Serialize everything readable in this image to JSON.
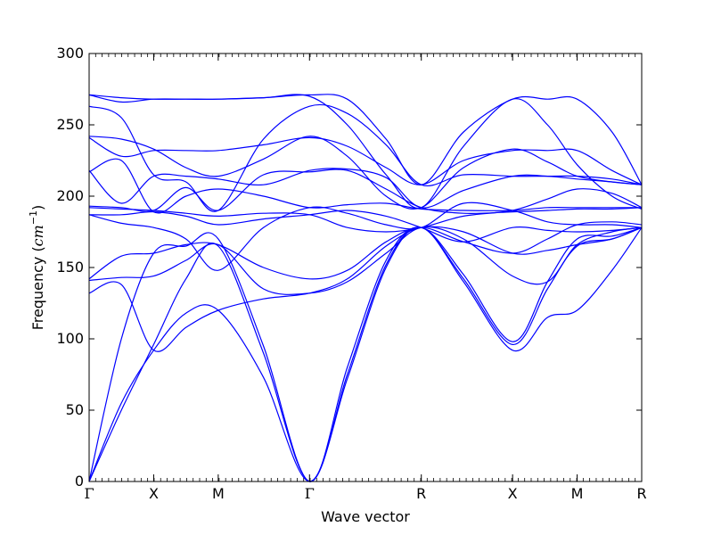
{
  "chart_data": {
    "type": "line",
    "xlabel": "Wave vector",
    "ylabel": {
      "prefix": "Frequency (",
      "unit": "cm",
      "exponent": "−1",
      "suffix": ")"
    },
    "ylim": [
      0,
      300
    ],
    "yticks": [
      0,
      50,
      100,
      150,
      200,
      250,
      300
    ],
    "path_points": [
      {
        "label": "Γ",
        "x": 0
      },
      {
        "label": "X",
        "x": 0.5
      },
      {
        "label": "M",
        "x": 1.0
      },
      {
        "label": "Γ",
        "x": 1.707
      },
      {
        "label": "R",
        "x": 2.573
      },
      {
        "label": "X",
        "x": 3.28
      },
      {
        "label": "M",
        "x": 3.78
      },
      {
        "label": "R",
        "x": 4.28
      }
    ],
    "grid": false,
    "line_color": "#0000ff",
    "series": [
      {
        "values": [
          [
            0,
            0
          ],
          [
            0.25,
            55
          ],
          [
            0.5,
            92
          ],
          [
            0.75,
            118
          ],
          [
            1.0,
            120
          ],
          [
            1.35,
            73
          ],
          [
            1.707,
            0
          ],
          [
            2.0,
            72
          ],
          [
            2.3,
            150
          ],
          [
            2.573,
            178
          ],
          [
            2.9,
            140
          ],
          [
            3.28,
            92
          ],
          [
            3.55,
            115
          ],
          [
            3.78,
            120
          ],
          [
            4.05,
            148
          ],
          [
            4.28,
            178
          ]
        ]
      },
      {
        "values": [
          [
            0,
            0
          ],
          [
            0.25,
            50
          ],
          [
            0.5,
            96
          ],
          [
            0.75,
            142
          ],
          [
            1.0,
            165
          ],
          [
            1.35,
            90
          ],
          [
            1.707,
            0
          ],
          [
            2.0,
            75
          ],
          [
            2.3,
            152
          ],
          [
            2.573,
            178
          ],
          [
            2.9,
            142
          ],
          [
            3.28,
            96
          ],
          [
            3.55,
            135
          ],
          [
            3.78,
            165
          ],
          [
            4.05,
            170
          ],
          [
            4.28,
            178
          ]
        ]
      },
      {
        "values": [
          [
            0,
            0
          ],
          [
            0.25,
            100
          ],
          [
            0.5,
            160
          ],
          [
            0.75,
            165
          ],
          [
            1.0,
            170
          ],
          [
            1.35,
            95
          ],
          [
            1.707,
            0
          ],
          [
            2.0,
            80
          ],
          [
            2.3,
            155
          ],
          [
            2.573,
            178
          ],
          [
            2.9,
            145
          ],
          [
            3.28,
            98
          ],
          [
            3.55,
            140
          ],
          [
            3.78,
            170
          ],
          [
            4.05,
            172
          ],
          [
            4.28,
            178
          ]
        ]
      },
      {
        "values": [
          [
            0,
            132
          ],
          [
            0.25,
            138
          ],
          [
            0.5,
            92
          ],
          [
            0.75,
            108
          ],
          [
            1.0,
            120
          ],
          [
            1.35,
            128
          ],
          [
            1.707,
            132
          ],
          [
            2.0,
            142
          ],
          [
            2.3,
            165
          ],
          [
            2.573,
            178
          ],
          [
            2.9,
            175
          ],
          [
            3.28,
            160
          ],
          [
            3.55,
            162
          ],
          [
            3.78,
            166
          ],
          [
            4.05,
            170
          ],
          [
            4.28,
            178
          ]
        ]
      },
      {
        "values": [
          [
            0,
            141
          ],
          [
            0.25,
            143
          ],
          [
            0.5,
            144
          ],
          [
            0.75,
            155
          ],
          [
            1.0,
            166
          ],
          [
            1.35,
            135
          ],
          [
            1.707,
            132
          ],
          [
            2.0,
            140
          ],
          [
            2.3,
            160
          ],
          [
            2.573,
            178
          ],
          [
            2.9,
            170
          ],
          [
            3.28,
            144
          ],
          [
            3.55,
            140
          ],
          [
            3.78,
            166
          ],
          [
            4.05,
            175
          ],
          [
            4.28,
            178
          ]
        ]
      },
      {
        "values": [
          [
            0,
            142
          ],
          [
            0.25,
            158
          ],
          [
            0.5,
            160
          ],
          [
            0.75,
            166
          ],
          [
            1.0,
            166
          ],
          [
            1.35,
            150
          ],
          [
            1.707,
            142
          ],
          [
            2.0,
            148
          ],
          [
            2.3,
            168
          ],
          [
            2.573,
            178
          ],
          [
            2.9,
            168
          ],
          [
            3.28,
            160
          ],
          [
            3.55,
            170
          ],
          [
            3.78,
            180
          ],
          [
            4.05,
            182
          ],
          [
            4.28,
            180
          ]
        ]
      },
      {
        "values": [
          [
            0,
            187
          ],
          [
            0.25,
            181
          ],
          [
            0.5,
            178
          ],
          [
            0.75,
            170
          ],
          [
            1.0,
            148
          ],
          [
            1.35,
            178
          ],
          [
            1.707,
            192
          ],
          [
            2.0,
            188
          ],
          [
            2.3,
            180
          ],
          [
            2.573,
            178
          ],
          [
            2.9,
            195
          ],
          [
            3.28,
            190
          ],
          [
            3.55,
            182
          ],
          [
            3.78,
            180
          ],
          [
            4.05,
            180
          ],
          [
            4.28,
            178
          ]
        ]
      },
      {
        "values": [
          [
            0,
            187
          ],
          [
            0.25,
            187
          ],
          [
            0.5,
            189
          ],
          [
            0.75,
            186
          ],
          [
            1.0,
            180
          ],
          [
            1.35,
            184
          ],
          [
            1.707,
            187
          ],
          [
            2.0,
            190
          ],
          [
            2.3,
            186
          ],
          [
            2.573,
            178
          ],
          [
            2.9,
            168
          ],
          [
            3.28,
            178
          ],
          [
            3.55,
            176
          ],
          [
            3.78,
            175
          ],
          [
            4.05,
            176
          ],
          [
            4.28,
            178
          ]
        ]
      },
      {
        "values": [
          [
            0,
            192
          ],
          [
            0.25,
            191
          ],
          [
            0.5,
            190
          ],
          [
            0.75,
            188
          ],
          [
            1.0,
            186
          ],
          [
            1.35,
            188
          ],
          [
            1.707,
            187
          ],
          [
            2.0,
            178
          ],
          [
            2.3,
            175
          ],
          [
            2.573,
            178
          ],
          [
            2.9,
            186
          ],
          [
            3.28,
            190
          ],
          [
            3.55,
            198
          ],
          [
            3.78,
            205
          ],
          [
            4.05,
            202
          ],
          [
            4.28,
            192
          ]
        ]
      },
      {
        "values": [
          [
            0,
            193
          ],
          [
            0.25,
            192
          ],
          [
            0.5,
            190
          ],
          [
            0.75,
            206
          ],
          [
            1.0,
            190
          ],
          [
            1.35,
            215
          ],
          [
            1.707,
            217
          ],
          [
            2.0,
            218
          ],
          [
            2.3,
            205
          ],
          [
            2.573,
            192
          ],
          [
            2.9,
            188
          ],
          [
            3.28,
            189
          ],
          [
            3.55,
            190
          ],
          [
            3.78,
            191
          ],
          [
            4.05,
            191
          ],
          [
            4.28,
            192
          ]
        ]
      },
      {
        "values": [
          [
            0,
            217
          ],
          [
            0.25,
            225
          ],
          [
            0.5,
            189
          ],
          [
            0.75,
            200
          ],
          [
            1.0,
            205
          ],
          [
            1.35,
            200
          ],
          [
            1.707,
            192
          ],
          [
            2.0,
            194
          ],
          [
            2.3,
            195
          ],
          [
            2.573,
            191
          ],
          [
            2.9,
            190
          ],
          [
            3.28,
            190
          ],
          [
            3.55,
            192
          ],
          [
            3.78,
            192
          ],
          [
            4.05,
            192
          ],
          [
            4.28,
            192
          ]
        ]
      },
      {
        "values": [
          [
            0,
            218
          ],
          [
            0.25,
            195
          ],
          [
            0.5,
            214
          ],
          [
            0.75,
            214
          ],
          [
            1.0,
            212
          ],
          [
            1.35,
            208
          ],
          [
            1.707,
            218
          ],
          [
            2.0,
            219
          ],
          [
            2.3,
            213
          ],
          [
            2.573,
            192
          ],
          [
            2.9,
            204
          ],
          [
            3.28,
            214
          ],
          [
            3.55,
            214
          ],
          [
            3.78,
            212
          ],
          [
            4.05,
            210
          ],
          [
            4.28,
            208
          ]
        ]
      },
      {
        "values": [
          [
            0,
            241
          ],
          [
            0.25,
            228
          ],
          [
            0.5,
            232
          ],
          [
            0.75,
            232
          ],
          [
            1.0,
            232
          ],
          [
            1.35,
            236
          ],
          [
            1.707,
            241
          ],
          [
            2.0,
            235
          ],
          [
            2.3,
            220
          ],
          [
            2.573,
            208
          ],
          [
            2.9,
            225
          ],
          [
            3.28,
            232
          ],
          [
            3.55,
            232
          ],
          [
            3.78,
            232
          ],
          [
            4.05,
            218
          ],
          [
            4.28,
            208
          ]
        ]
      },
      {
        "values": [
          [
            0,
            242
          ],
          [
            0.25,
            240
          ],
          [
            0.5,
            233
          ],
          [
            0.75,
            220
          ],
          [
            1.0,
            214
          ],
          [
            1.35,
            226
          ],
          [
            1.707,
            242
          ],
          [
            2.0,
            228
          ],
          [
            2.3,
            200
          ],
          [
            2.573,
            192
          ],
          [
            2.9,
            220
          ],
          [
            3.28,
            233
          ],
          [
            3.55,
            224
          ],
          [
            3.78,
            214
          ],
          [
            4.05,
            210
          ],
          [
            4.28,
            208
          ]
        ]
      },
      {
        "values": [
          [
            0,
            263
          ],
          [
            0.25,
            255
          ],
          [
            0.5,
            215
          ],
          [
            0.75,
            210
          ],
          [
            1.0,
            190
          ],
          [
            1.35,
            240
          ],
          [
            1.707,
            263
          ],
          [
            2.0,
            258
          ],
          [
            2.3,
            236
          ],
          [
            2.573,
            208
          ],
          [
            2.9,
            215
          ],
          [
            3.28,
            214
          ],
          [
            3.55,
            214
          ],
          [
            3.78,
            214
          ],
          [
            4.05,
            212
          ],
          [
            4.28,
            208
          ]
        ]
      },
      {
        "values": [
          [
            0,
            271
          ],
          [
            0.25,
            269
          ],
          [
            0.5,
            268
          ],
          [
            0.75,
            268
          ],
          [
            1.0,
            268
          ],
          [
            1.35,
            269
          ],
          [
            1.707,
            271
          ],
          [
            2.0,
            268
          ],
          [
            2.3,
            240
          ],
          [
            2.573,
            208
          ],
          [
            2.9,
            245
          ],
          [
            3.28,
            268
          ],
          [
            3.55,
            268
          ],
          [
            3.78,
            268
          ],
          [
            4.05,
            245
          ],
          [
            4.28,
            208
          ]
        ]
      },
      {
        "values": [
          [
            0,
            271
          ],
          [
            0.25,
            266
          ],
          [
            0.5,
            268
          ],
          [
            0.75,
            268
          ],
          [
            1.0,
            268
          ],
          [
            1.35,
            269
          ],
          [
            1.707,
            270
          ],
          [
            2.0,
            250
          ],
          [
            2.3,
            215
          ],
          [
            2.573,
            192
          ],
          [
            2.9,
            235
          ],
          [
            3.28,
            268
          ],
          [
            3.55,
            250
          ],
          [
            3.78,
            222
          ],
          [
            4.05,
            200
          ],
          [
            4.28,
            191
          ]
        ]
      }
    ]
  }
}
